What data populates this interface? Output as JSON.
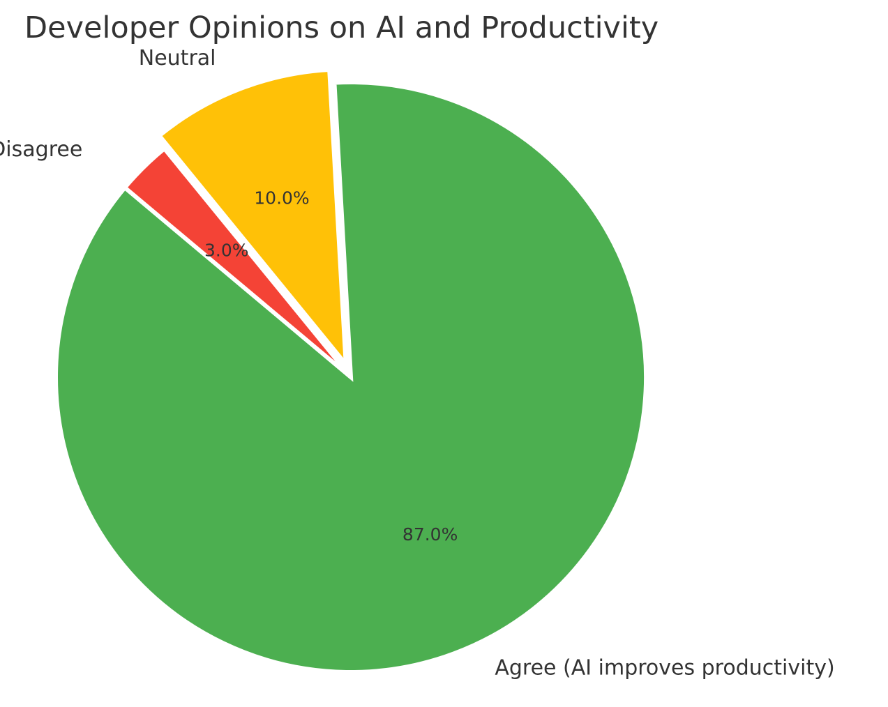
{
  "chart_data": {
    "type": "pie",
    "title": "Developer Opinions on AI and Productivity",
    "categories": [
      "Agree (AI improves productivity)",
      "Neutral",
      "Disagree"
    ],
    "values": [
      87.0,
      10.0,
      3.0
    ],
    "percent_labels": [
      "87.0%",
      "10.0%",
      "3.0%"
    ],
    "colors": [
      "#4caf50",
      "#ffc107",
      "#f44336"
    ],
    "exploded": [
      false,
      true,
      false
    ],
    "start_angle_deg": 140,
    "direction": "counterclockwise",
    "legend": "none"
  }
}
